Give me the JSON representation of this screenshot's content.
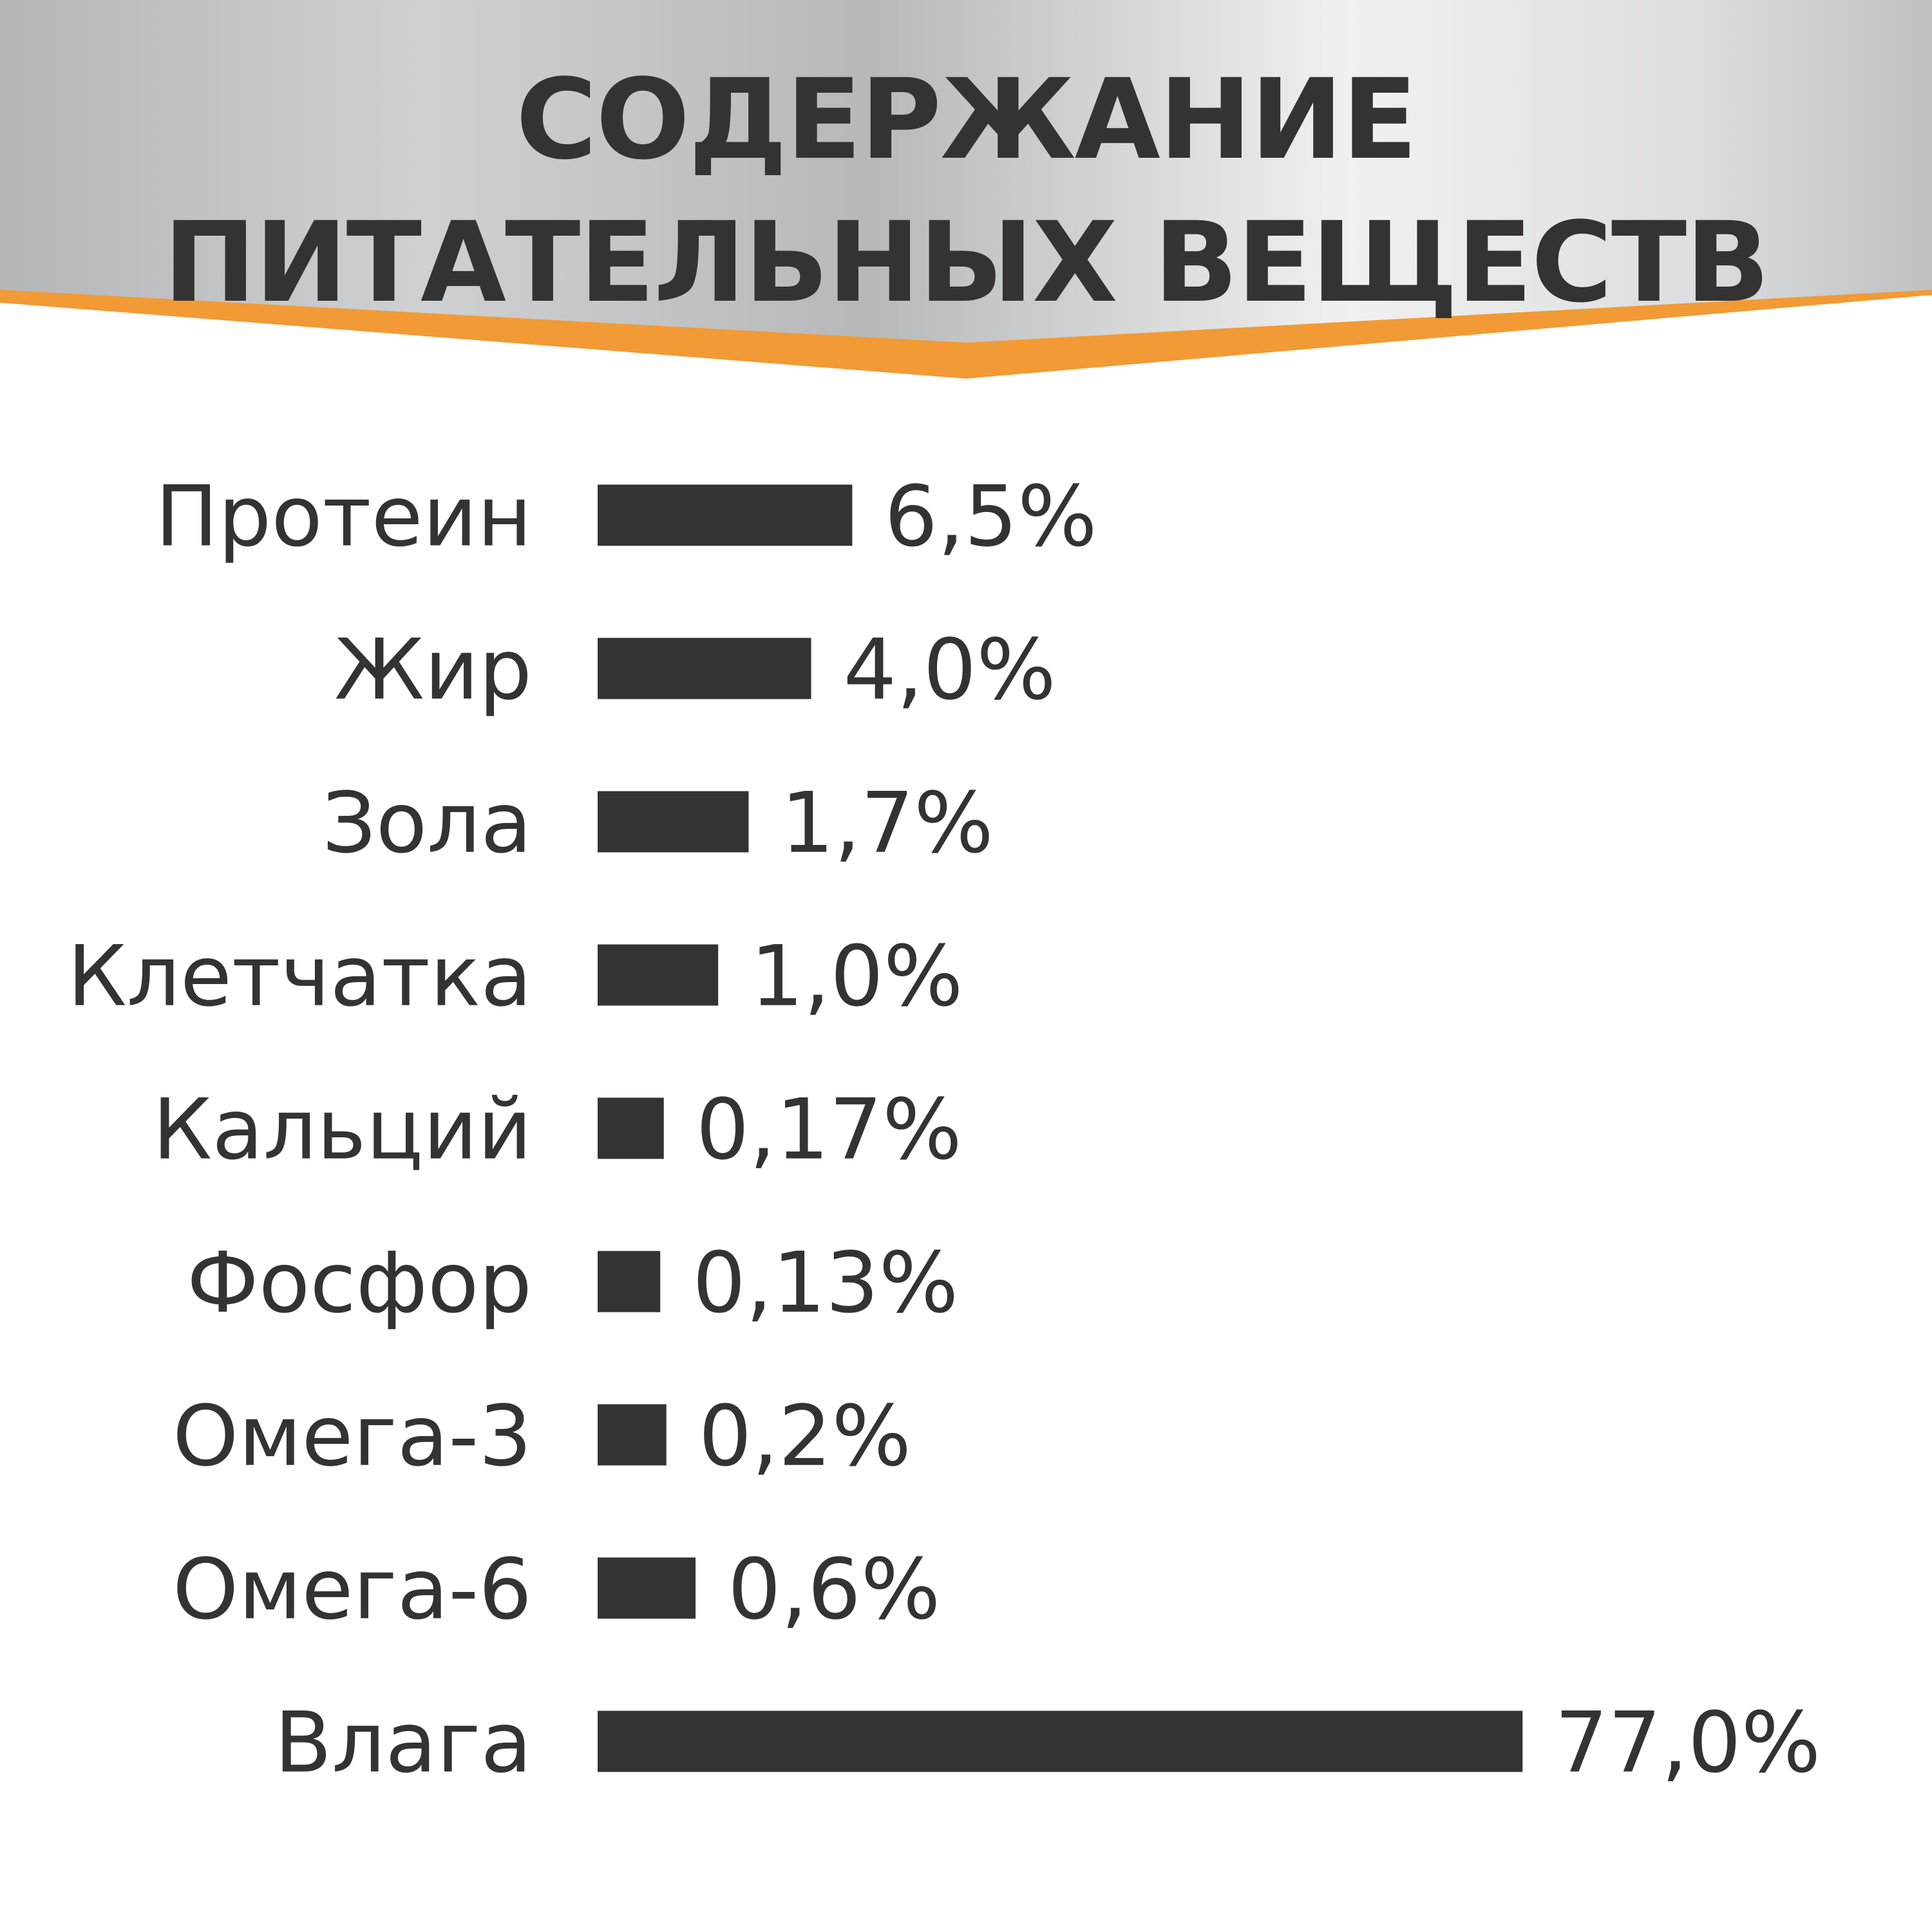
{
  "title": {
    "line1": "СОДЕРЖАНИЕ",
    "line2": "ПИТАТЕЛЬНЫХ ВЕЩЕСТВ"
  },
  "colors": {
    "bar": "#333333",
    "text": "#333333",
    "accent": "#f29a35",
    "header_light": "#f1f1f1",
    "header_dark": "#b5b6b8"
  },
  "chart_data": {
    "type": "bar",
    "orientation": "horizontal",
    "title": "СОДЕРЖАНИЕ ПИТАТЕЛЬНЫХ ВЕЩЕСТВ",
    "categories": [
      "Протеин",
      "Жир",
      "Зола",
      "Клетчатка",
      "Кальций",
      "Фосфор",
      "Омега-3",
      "Омега-6",
      "Влага"
    ],
    "values": [
      6.5,
      4.0,
      1.7,
      1.0,
      0.17,
      0.13,
      0.2,
      0.6,
      77.0
    ],
    "value_labels": [
      "6,5%",
      "4,0%",
      "1,7%",
      "1,0%",
      "0,17%",
      "0,13%",
      "0,2%",
      "0,6%",
      "77,0%"
    ],
    "unit": "%",
    "grid": false,
    "legend": "none",
    "axes_visible": false
  }
}
